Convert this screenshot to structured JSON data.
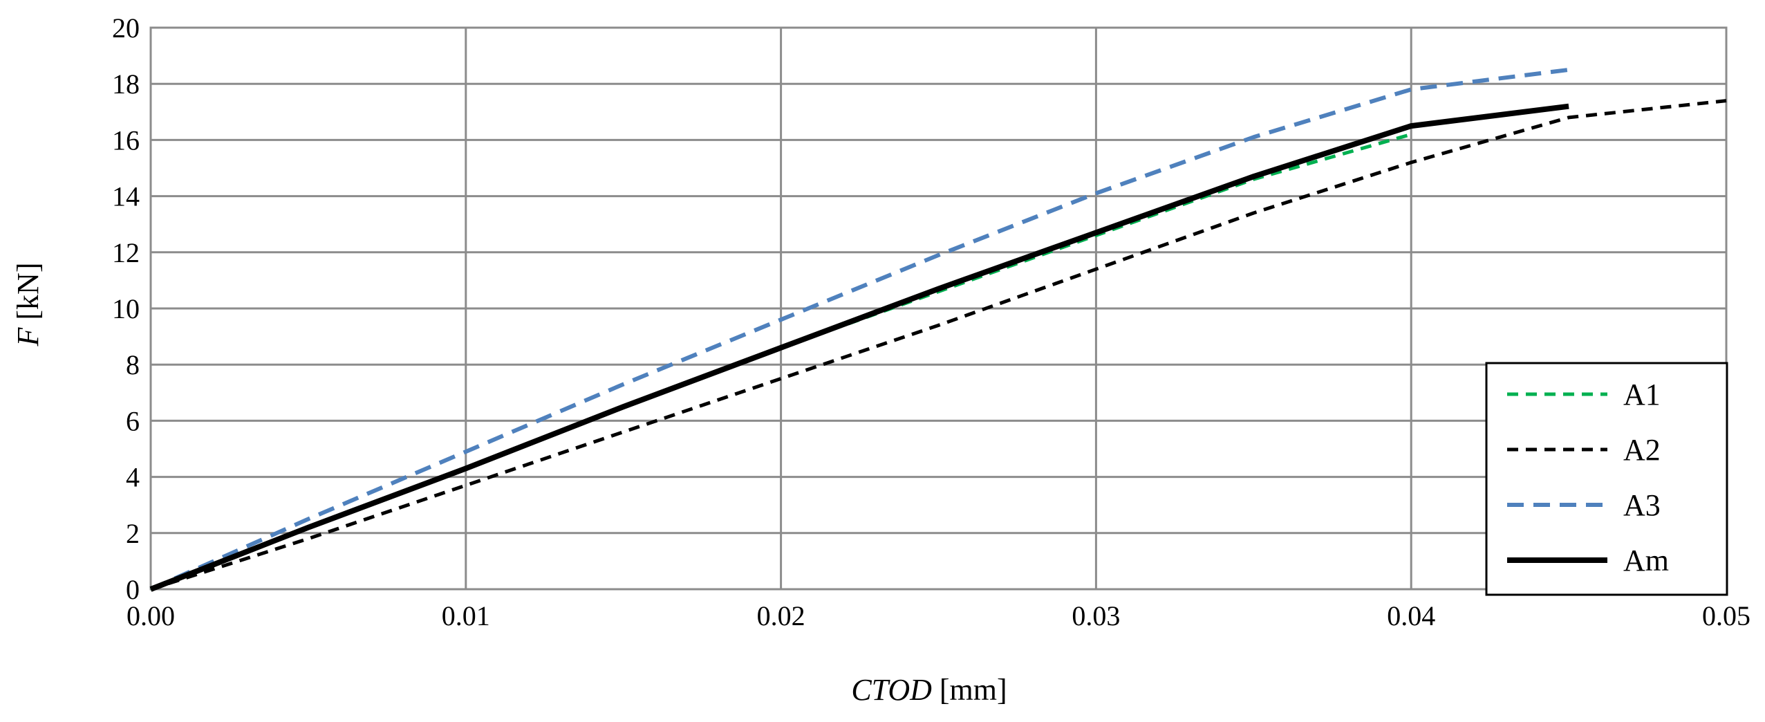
{
  "chart_data": {
    "type": "line",
    "title": "",
    "xlabel_italic": "CTOD",
    "xlabel_unit": " [mm]",
    "ylabel_italic": "F",
    "ylabel_unit": " [kN]",
    "xlim": [
      0,
      0.05
    ],
    "ylim": [
      0,
      20
    ],
    "x_ticks": [
      0,
      0.01,
      0.02,
      0.03,
      0.04,
      0.05
    ],
    "x_tick_labels": [
      "0.00",
      "0.01",
      "0.02",
      "0.03",
      "0.04",
      "0.05"
    ],
    "y_ticks": [
      0,
      2,
      4,
      6,
      8,
      10,
      12,
      14,
      16,
      18,
      20
    ],
    "y_tick_labels": [
      "0",
      "2",
      "4",
      "6",
      "8",
      "10",
      "12",
      "14",
      "16",
      "18",
      "20"
    ],
    "grid": true,
    "legend_position": "bottom-right",
    "series": [
      {
        "name": "A1",
        "color": "#00b050",
        "style": "dashed",
        "x": [
          0,
          0.005,
          0.01,
          0.015,
          0.02,
          0.025,
          0.03,
          0.035,
          0.04
        ],
        "y": [
          0,
          2.2,
          4.3,
          6.5,
          8.6,
          10.6,
          12.6,
          14.6,
          16.2
        ]
      },
      {
        "name": "A2",
        "color": "#000000",
        "style": "dashed",
        "x": [
          0,
          0.005,
          0.01,
          0.015,
          0.02,
          0.025,
          0.03,
          0.035,
          0.04,
          0.045,
          0.05
        ],
        "y": [
          0,
          1.8,
          3.7,
          5.6,
          7.5,
          9.4,
          11.4,
          13.4,
          15.2,
          16.8,
          17.4
        ]
      },
      {
        "name": "A3",
        "color": "#4f81bd",
        "style": "dashed",
        "x": [
          0,
          0.005,
          0.01,
          0.015,
          0.02,
          0.025,
          0.03,
          0.035,
          0.04,
          0.045
        ],
        "y": [
          0,
          2.5,
          4.9,
          7.3,
          9.6,
          11.9,
          14.1,
          16.1,
          17.8,
          18.5
        ]
      },
      {
        "name": "Am",
        "color": "#000000",
        "style": "solid",
        "x": [
          0,
          0.005,
          0.01,
          0.015,
          0.02,
          0.025,
          0.03,
          0.035,
          0.04,
          0.045
        ],
        "y": [
          0,
          2.2,
          4.3,
          6.5,
          8.6,
          10.7,
          12.7,
          14.7,
          16.5,
          17.2
        ]
      }
    ]
  }
}
